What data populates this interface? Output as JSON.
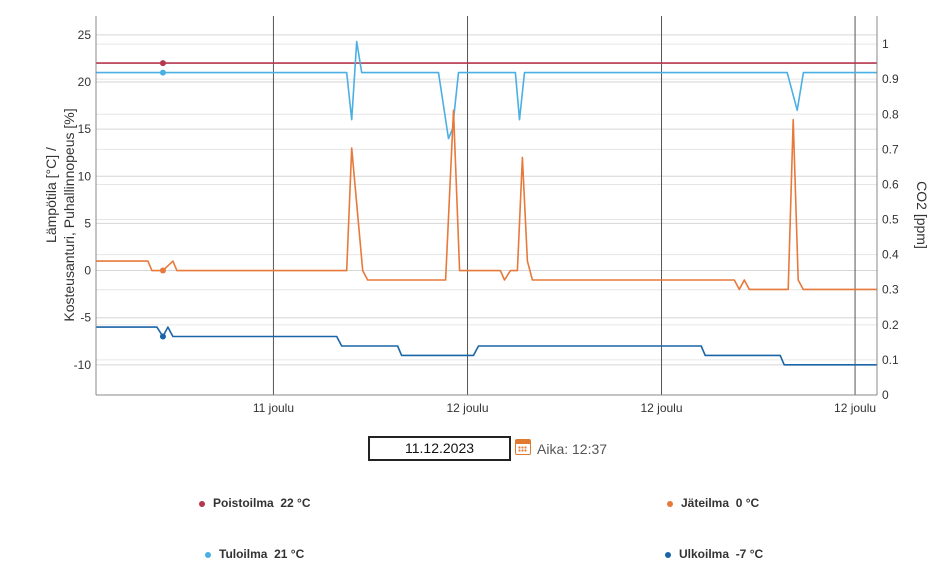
{
  "chart_data": {
    "type": "line",
    "ylabel_left": "Lämpötila [°C] / Kosteusanturi, Puhallinnopeus [%]",
    "ylabel_right": "CO2 [ppm]",
    "ylim_left": [
      -13.2,
      27
    ],
    "yticks_left": [
      -10,
      -5,
      0,
      5,
      10,
      15,
      20,
      25
    ],
    "ylim_right": [
      0,
      1.08
    ],
    "yticks_right": [
      0,
      0.1,
      0.2,
      0.3,
      0.4,
      0.5,
      0.6,
      0.7,
      0.8,
      0.9,
      1
    ],
    "xlim": [
      0,
      1
    ],
    "x_ticks": [
      {
        "label": "11 joulu",
        "x": 0.2272
      },
      {
        "label": "12 joulu",
        "x": 0.4757
      },
      {
        "label": "12 joulu",
        "x": 0.7241
      },
      {
        "label": "12 joulu",
        "x": 0.9719
      }
    ],
    "grid": true,
    "series": [
      {
        "name": "Poistoilma",
        "color": "#b5374e",
        "marker_x": 0.0857,
        "points": [
          [
            0,
            22
          ],
          [
            1,
            22
          ]
        ]
      },
      {
        "name": "Tuloilma",
        "color": "#4ab0e4",
        "marker_x": 0.0857,
        "points": [
          [
            0,
            21
          ],
          [
            0.321,
            21
          ],
          [
            0.3274,
            16
          ],
          [
            0.3338,
            24.3
          ],
          [
            0.3402,
            21
          ],
          [
            0.4386,
            21
          ],
          [
            0.4514,
            14
          ],
          [
            0.4565,
            15
          ],
          [
            0.4642,
            21
          ],
          [
            0.537,
            21
          ],
          [
            0.5422,
            16
          ],
          [
            0.5486,
            21
          ],
          [
            0.885,
            21
          ],
          [
            0.8978,
            17
          ],
          [
            0.9058,
            21
          ],
          [
            1,
            21
          ]
        ]
      },
      {
        "name": "Jäteilma",
        "color": "#e7793b",
        "marker_x": 0.0857,
        "points": [
          [
            0,
            1
          ],
          [
            0.0665,
            1
          ],
          [
            0.0716,
            0
          ],
          [
            0.0857,
            0
          ],
          [
            0.0985,
            1
          ],
          [
            0.1036,
            0
          ],
          [
            0.321,
            0
          ],
          [
            0.3274,
            13
          ],
          [
            0.3415,
            0
          ],
          [
            0.3479,
            -1
          ],
          [
            0.4476,
            -1
          ],
          [
            0.4578,
            17
          ],
          [
            0.4655,
            0
          ],
          [
            0.5178,
            0
          ],
          [
            0.523,
            -1
          ],
          [
            0.5306,
            0
          ],
          [
            0.5396,
            0
          ],
          [
            0.546,
            12
          ],
          [
            0.5524,
            1
          ],
          [
            0.5588,
            -1
          ],
          [
            0.8173,
            -1
          ],
          [
            0.8237,
            -2
          ],
          [
            0.8301,
            -1
          ],
          [
            0.8365,
            -2
          ],
          [
            0.8863,
            -2
          ],
          [
            0.8927,
            16
          ],
          [
            0.8991,
            -1
          ],
          [
            0.9055,
            -2
          ],
          [
            1,
            -2
          ]
        ]
      },
      {
        "name": "Ulkoilma",
        "color": "#1a65a8",
        "marker_x": 0.0857,
        "points": [
          [
            0,
            -6
          ],
          [
            0.078,
            -6
          ],
          [
            0.0857,
            -7
          ],
          [
            0.0921,
            -6
          ],
          [
            0.0985,
            -7
          ],
          [
            0.3082,
            -7
          ],
          [
            0.3146,
            -8
          ],
          [
            0.3862,
            -8
          ],
          [
            0.3913,
            -9
          ],
          [
            0.4834,
            -9
          ],
          [
            0.4898,
            -8
          ],
          [
            0.7749,
            -8
          ],
          [
            0.78,
            -9
          ],
          [
            0.876,
            -9
          ],
          [
            0.8812,
            -10
          ],
          [
            1,
            -10
          ]
        ]
      }
    ]
  },
  "date_input": "11.12.2023",
  "time_label": "Aika: 12:37",
  "legend": [
    {
      "name": "Poistoilma",
      "value": "22 °C",
      "color": "#b5374e"
    },
    {
      "name": "Jäteilma",
      "value": "0 °C",
      "color": "#e7793b"
    },
    {
      "name": "Tuloilma",
      "value": "21 °C",
      "color": "#4ab0e4"
    },
    {
      "name": "Ulkoilma",
      "value": "-7 °C",
      "color": "#1a65a8"
    }
  ]
}
